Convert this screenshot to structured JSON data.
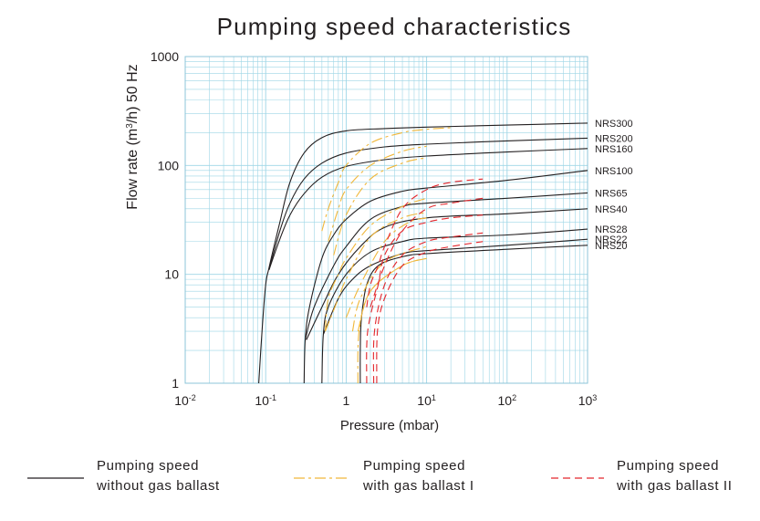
{
  "chart_data": {
    "type": "line",
    "title": "Pumping speed characteristics",
    "xlabel": "Pressure (mbar)",
    "ylabel": {
      "prefix": "Flow rate (m",
      "sup": "3",
      "suffix": "/h) 50 Hz"
    },
    "x_scale": "log",
    "y_scale": "log",
    "xlim": [
      0.01,
      1000
    ],
    "ylim": [
      1,
      1000
    ],
    "x_ticks": [
      {
        "value": 0.01,
        "base": "10",
        "exp": "-2"
      },
      {
        "value": 0.1,
        "base": "10",
        "exp": "-1"
      },
      {
        "value": 1,
        "base": "1",
        "exp": ""
      },
      {
        "value": 10,
        "base": "10",
        "exp": "1"
      },
      {
        "value": 100,
        "base": "10",
        "exp": "2"
      },
      {
        "value": 1000,
        "base": "10",
        "exp": "3"
      }
    ],
    "y_ticks": [
      {
        "value": 1,
        "label": "1"
      },
      {
        "value": 10,
        "label": "10"
      },
      {
        "value": 100,
        "label": "100"
      },
      {
        "value": 1000,
        "label": "1000"
      }
    ],
    "grid": true,
    "series": [
      {
        "name": "NRS300",
        "group": "without gas ballast",
        "points": [
          [
            0.082,
            1
          ],
          [
            0.09,
            3
          ],
          [
            0.1,
            8
          ],
          [
            0.11,
            11.5
          ],
          [
            0.15,
            30
          ],
          [
            0.2,
            70
          ],
          [
            0.3,
            130
          ],
          [
            0.5,
            180
          ],
          [
            1,
            208
          ],
          [
            3,
            218
          ],
          [
            10,
            225
          ],
          [
            100,
            235
          ],
          [
            1000,
            245
          ]
        ]
      },
      {
        "name": "NRS200",
        "group": "without gas ballast",
        "points": [
          [
            0.11,
            11
          ],
          [
            0.15,
            25
          ],
          [
            0.2,
            45
          ],
          [
            0.3,
            75
          ],
          [
            0.5,
            105
          ],
          [
            1,
            130
          ],
          [
            3,
            148
          ],
          [
            10,
            157
          ],
          [
            100,
            168
          ],
          [
            1000,
            178
          ]
        ]
      },
      {
        "name": "NRS160",
        "group": "without gas ballast",
        "points": [
          [
            0.11,
            11
          ],
          [
            0.15,
            21
          ],
          [
            0.2,
            35
          ],
          [
            0.3,
            55
          ],
          [
            0.5,
            78
          ],
          [
            1,
            98
          ],
          [
            3,
            113
          ],
          [
            10,
            122
          ],
          [
            100,
            133
          ],
          [
            1000,
            143
          ]
        ]
      },
      {
        "name": "NRS100",
        "group": "without gas ballast",
        "points": [
          [
            0.3,
            1
          ],
          [
            0.31,
            2.5
          ],
          [
            0.35,
            5
          ],
          [
            0.5,
            14
          ],
          [
            0.7,
            23
          ],
          [
            1,
            32
          ],
          [
            2,
            47
          ],
          [
            5,
            58
          ],
          [
            10,
            62
          ],
          [
            100,
            73
          ],
          [
            1000,
            90
          ]
        ]
      },
      {
        "name": "NRS65",
        "group": "without gas ballast",
        "points": [
          [
            0.31,
            2.5
          ],
          [
            0.4,
            5
          ],
          [
            0.7,
            12
          ],
          [
            1,
            18
          ],
          [
            2,
            32
          ],
          [
            5,
            42
          ],
          [
            10,
            45
          ],
          [
            100,
            50
          ],
          [
            1000,
            56
          ]
        ]
      },
      {
        "name": "NRS40",
        "group": "without gas ballast",
        "points": [
          [
            0.32,
            2.5
          ],
          [
            0.5,
            5
          ],
          [
            0.8,
            10
          ],
          [
            1.5,
            18
          ],
          [
            3,
            27
          ],
          [
            10,
            33
          ],
          [
            100,
            36
          ],
          [
            1000,
            40
          ]
        ]
      },
      {
        "name": "NRS28",
        "group": "without gas ballast",
        "points": [
          [
            0.5,
            1
          ],
          [
            0.52,
            2.8
          ],
          [
            0.6,
            5
          ],
          [
            1,
            10
          ],
          [
            2,
            16
          ],
          [
            5,
            20
          ],
          [
            10,
            21.5
          ],
          [
            100,
            23
          ],
          [
            1000,
            26
          ]
        ]
      },
      {
        "name": "NRS22",
        "group": "without gas ballast",
        "points": [
          [
            0.52,
            2.8
          ],
          [
            0.8,
            6
          ],
          [
            1.2,
            9
          ],
          [
            2,
            12
          ],
          [
            5,
            15.5
          ],
          [
            10,
            16.5
          ],
          [
            100,
            18.5
          ],
          [
            1000,
            21
          ]
        ]
      },
      {
        "name": "NRS20",
        "group": "without gas ballast",
        "points": [
          [
            1.5,
            1
          ],
          [
            1.5,
            2
          ],
          [
            1.55,
            4
          ],
          [
            1.8,
            8
          ],
          [
            2.5,
            12
          ],
          [
            5,
            14.5
          ],
          [
            10,
            15.5
          ],
          [
            100,
            17
          ],
          [
            1000,
            18.5
          ]
        ]
      },
      {
        "name": "NRS300 I",
        "group": "with gas ballast I",
        "points": [
          [
            0.5,
            25
          ],
          [
            0.6,
            40
          ],
          [
            0.8,
            70
          ],
          [
            1,
            100
          ],
          [
            2,
            160
          ],
          [
            5,
            200
          ],
          [
            10,
            215
          ],
          [
            20,
            222
          ]
        ]
      },
      {
        "name": "NRS200 I",
        "group": "with gas ballast I",
        "points": [
          [
            0.6,
            20
          ],
          [
            0.8,
            40
          ],
          [
            1,
            60
          ],
          [
            2,
            100
          ],
          [
            5,
            135
          ],
          [
            10,
            150
          ]
        ]
      },
      {
        "name": "NRS160 I",
        "group": "with gas ballast I",
        "points": [
          [
            0.7,
            15
          ],
          [
            1,
            35
          ],
          [
            2,
            75
          ],
          [
            5,
            105
          ],
          [
            10,
            118
          ]
        ]
      },
      {
        "name": "NRS100 I",
        "group": "with gas ballast I",
        "points": [
          [
            0.55,
            3
          ],
          [
            0.6,
            6
          ],
          [
            0.8,
            10
          ],
          [
            1,
            14
          ],
          [
            2,
            28
          ],
          [
            5,
            42
          ],
          [
            10,
            50
          ]
        ]
      },
      {
        "name": "NRS65 I",
        "group": "with gas ballast I",
        "points": [
          [
            0.55,
            3
          ],
          [
            0.8,
            6
          ],
          [
            1,
            9
          ],
          [
            2,
            22
          ],
          [
            5,
            33
          ],
          [
            10,
            37
          ]
        ]
      },
      {
        "name": "NRS40 I",
        "group": "with gas ballast I",
        "points": [
          [
            1.0,
            4
          ],
          [
            1.5,
            8
          ],
          [
            3,
            20
          ],
          [
            6,
            30
          ],
          [
            10,
            33
          ]
        ]
      },
      {
        "name": "NRS28 I",
        "group": "with gas ballast I",
        "points": [
          [
            1.2,
            3
          ],
          [
            1.5,
            6
          ],
          [
            3,
            13
          ],
          [
            10,
            18
          ]
        ]
      },
      {
        "name": "NRS22 I",
        "group": "with gas ballast I",
        "points": [
          [
            1.4,
            3
          ],
          [
            2,
            7
          ],
          [
            5,
            12
          ],
          [
            10,
            14
          ]
        ]
      },
      {
        "name": "NRS20 I",
        "group": "with gas ballast I",
        "points": [
          [
            1.4,
            1
          ],
          [
            1.45,
            3
          ],
          [
            2,
            7
          ],
          [
            5,
            12
          ],
          [
            10,
            14
          ]
        ]
      },
      {
        "name": "NRS100 II",
        "group": "with gas ballast II",
        "points": [
          [
            1.8,
            5
          ],
          [
            2,
            8
          ],
          [
            2.5,
            12
          ],
          [
            3,
            18
          ],
          [
            5,
            40
          ],
          [
            10,
            60
          ],
          [
            20,
            70
          ],
          [
            50,
            75
          ]
        ]
      },
      {
        "name": "NRS65 II",
        "group": "with gas ballast II",
        "points": [
          [
            2,
            5
          ],
          [
            3,
            12
          ],
          [
            5,
            25
          ],
          [
            10,
            40
          ],
          [
            20,
            45
          ],
          [
            50,
            50
          ]
        ]
      },
      {
        "name": "NRS40 II",
        "group": "with gas ballast II",
        "points": [
          [
            1.8,
            1
          ],
          [
            1.85,
            3
          ],
          [
            2.5,
            8
          ],
          [
            3,
            15
          ],
          [
            5,
            25
          ],
          [
            10,
            30
          ],
          [
            20,
            33
          ],
          [
            50,
            35
          ]
        ]
      },
      {
        "name": "NRS28 II",
        "group": "with gas ballast II",
        "points": [
          [
            2.2,
            1
          ],
          [
            2.25,
            3
          ],
          [
            3,
            8
          ],
          [
            5,
            15
          ],
          [
            10,
            20
          ],
          [
            20,
            22
          ],
          [
            50,
            24
          ]
        ]
      },
      {
        "name": "NRS22 II",
        "group": "with gas ballast II",
        "points": [
          [
            2.4,
            1
          ],
          [
            2.45,
            3
          ],
          [
            3,
            6
          ],
          [
            5,
            12
          ],
          [
            10,
            16
          ],
          [
            20,
            18
          ],
          [
            50,
            20
          ]
        ]
      }
    ]
  },
  "legend": [
    {
      "line1": "Pumping speed",
      "line2": "without gas ballast",
      "color": "#231f20",
      "dash": ""
    },
    {
      "line1": "Pumping speed",
      "line2": "with gas ballast I",
      "color": "#f0b73a",
      "dash": "12 4 3 4"
    },
    {
      "line1": "Pumping speed",
      "line2": "with gas ballast II",
      "color": "#e3262c",
      "dash": "8 5"
    }
  ],
  "colors": {
    "grid": "#9ed6e6",
    "axis": "#8cc4d8",
    "text": "#231f20"
  }
}
